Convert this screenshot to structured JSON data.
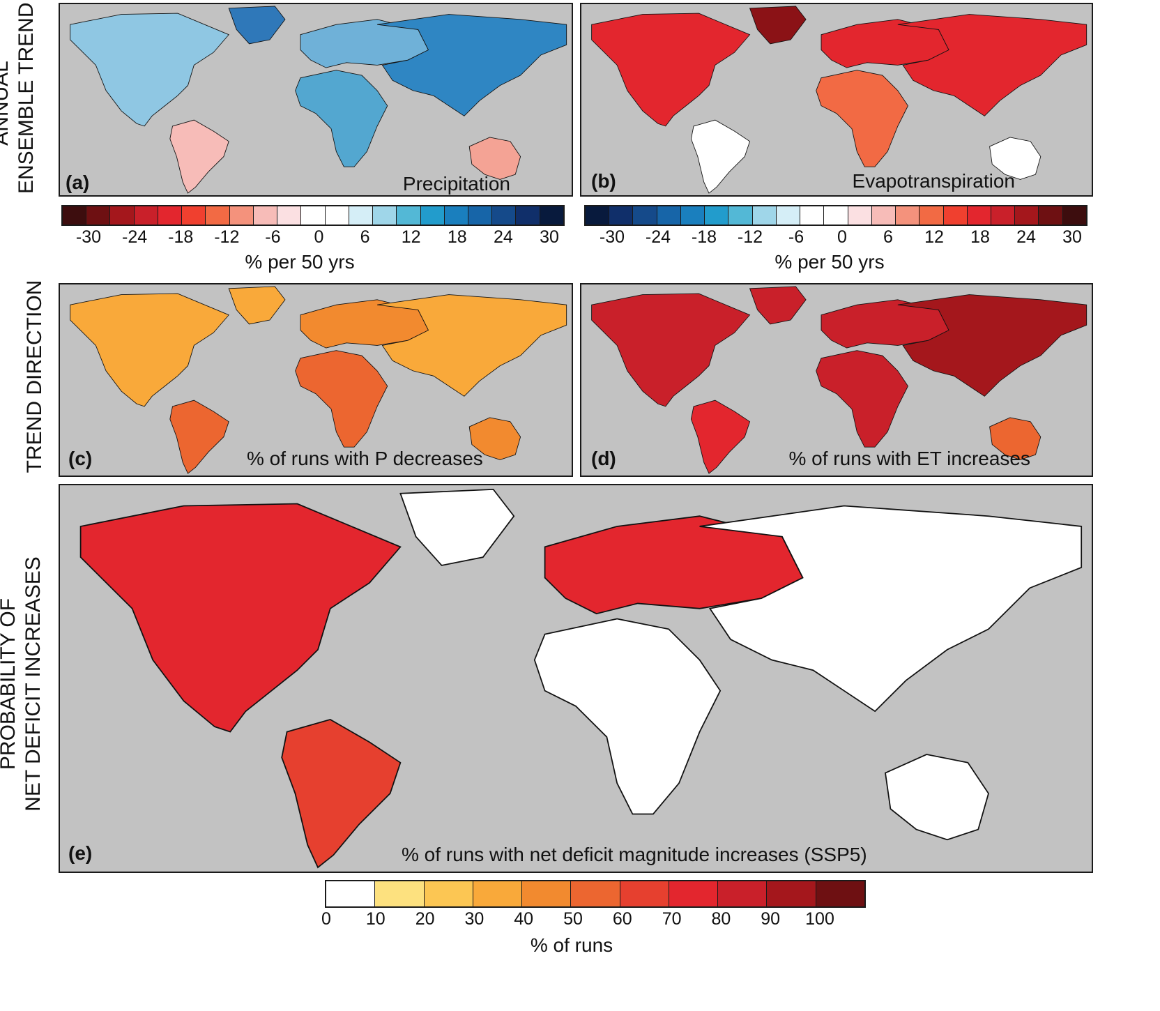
{
  "row_labels": {
    "row1_line1": "ANNUAL",
    "row1_line2": "ENSEMBLE TREND",
    "row2": "TREND DIRECTION",
    "row3_line1": "PROBABILITY OF",
    "row3_line2": "NET DEFICIT INCREASES"
  },
  "panels": {
    "a": {
      "label": "(a)",
      "title": "Precipitation"
    },
    "b": {
      "label": "(b)",
      "title": "Evapotranspiration"
    },
    "c": {
      "label": "(c)",
      "title": "% of runs with P decreases"
    },
    "d": {
      "label": "(d)",
      "title": "% of runs with ET increases"
    },
    "e": {
      "label": "(e)",
      "title": "% of runs with net deficit magnitude increases (SSP5)"
    }
  },
  "colorbars": {
    "precip": {
      "unit": "% per 50 yrs",
      "ticks": [
        "-30",
        "-24",
        "-18",
        "-12",
        "-6",
        "0",
        "6",
        "12",
        "18",
        "24",
        "30"
      ],
      "colors": [
        "#3d0d0e",
        "#6e1012",
        "#a4171c",
        "#c9202a",
        "#e3262e",
        "#f0402f",
        "#f26a44",
        "#f4927c",
        "#f7bcb8",
        "#fbe0e2",
        "#ffffff",
        "#ffffff",
        "#d5eef7",
        "#9fd6e9",
        "#53b8d6",
        "#229ccc",
        "#1a7fbe",
        "#1765a8",
        "#154a8a",
        "#102f6a",
        "#081a3d"
      ]
    },
    "et": {
      "unit": "% per 50 yrs",
      "ticks": [
        "-30",
        "-24",
        "-18",
        "-12",
        "-6",
        "0",
        "6",
        "12",
        "18",
        "24",
        "30"
      ],
      "colors": [
        "#081a3d",
        "#102f6a",
        "#154a8a",
        "#1765a8",
        "#1a7fbe",
        "#229ccc",
        "#53b8d6",
        "#9fd6e9",
        "#d5eef7",
        "#ffffff",
        "#ffffff",
        "#fbe0e2",
        "#f7bcb8",
        "#f4927c",
        "#f26a44",
        "#f0402f",
        "#e3262e",
        "#c9202a",
        "#a4171c",
        "#6e1012",
        "#3d0d0e"
      ]
    },
    "runs": {
      "unit": "% of runs",
      "ticks": [
        "0",
        "10",
        "20",
        "30",
        "40",
        "50",
        "60",
        "70",
        "80",
        "90",
        "100"
      ],
      "colors": [
        "#ffffff",
        "#fde17f",
        "#fcc653",
        "#f9a93a",
        "#f28a2f",
        "#ec6630",
        "#e6402f",
        "#e3262e",
        "#c9202a",
        "#a4171c",
        "#6e1012"
      ]
    }
  },
  "map_fills": {
    "a": {
      "na": "#8fc7e3",
      "sa": "#f7bcb8",
      "eur": "#6fb1d8",
      "afr": "#53a7d0",
      "asia": "#2f86c3",
      "aus": "#f4a395",
      "gl": "#2f78b9"
    },
    "b": {
      "na": "#e3262e",
      "sa": "#ffffff",
      "eur": "#e3262e",
      "afr": "#f26a44",
      "asia": "#e3262e",
      "aus": "#ffffff",
      "gl": "#8b1216"
    },
    "c": {
      "na": "#f9a93a",
      "sa": "#ec6630",
      "eur": "#f28a2f",
      "afr": "#ec6630",
      "asia": "#f9a93a",
      "aus": "#f28a2f",
      "gl": "#f9a93a"
    },
    "d": {
      "na": "#c9202a",
      "sa": "#e3262e",
      "eur": "#c9202a",
      "afr": "#c9202a",
      "asia": "#a4171c",
      "aus": "#ec6630",
      "gl": "#c9202a"
    },
    "e": {
      "na": "#e3262e",
      "sa": "#e6402f",
      "eur": "#e3262e",
      "afr": "#ffffff",
      "asia": "#ffffff",
      "aus": "#ffffff",
      "gl": "#ffffff"
    }
  }
}
